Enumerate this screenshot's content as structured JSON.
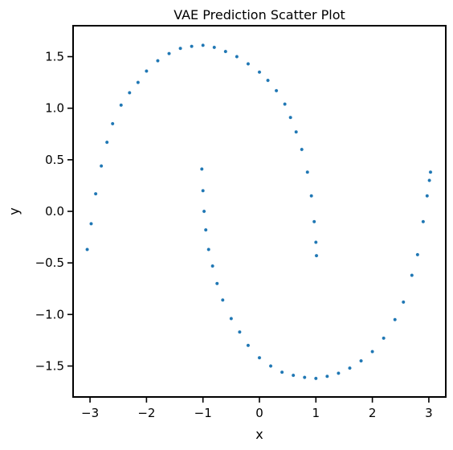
{
  "chart_data": {
    "type": "scatter",
    "title": "VAE Prediction Scatter Plot",
    "xlabel": "x",
    "ylabel": "y",
    "xlim": [
      -3.3,
      3.3
    ],
    "ylim": [
      -1.8,
      1.8
    ],
    "xticks": [
      -3,
      -2,
      -1,
      0,
      1,
      2,
      3
    ],
    "xtick_labels": [
      "−3",
      "−2",
      "−1",
      "0",
      "1",
      "2",
      "3"
    ],
    "yticks": [
      -1.5,
      -1.0,
      -0.5,
      0.0,
      0.5,
      1.0,
      1.5
    ],
    "ytick_labels": [
      "−1.5",
      "−1.0",
      "−0.5",
      "0.0",
      "0.5",
      "1.0",
      "1.5"
    ],
    "grid": false,
    "marker_color": "#1f77b4",
    "series": [
      {
        "points": [
          [
            -3.05,
            -0.37
          ],
          [
            -2.98,
            -0.12
          ],
          [
            -2.9,
            0.17
          ],
          [
            -2.8,
            0.44
          ],
          [
            -2.7,
            0.67
          ],
          [
            -2.6,
            0.85
          ],
          [
            -2.45,
            1.03
          ],
          [
            -2.3,
            1.15
          ],
          [
            -2.15,
            1.25
          ],
          [
            -2.0,
            1.36
          ],
          [
            -1.8,
            1.46
          ],
          [
            -1.6,
            1.53
          ],
          [
            -1.4,
            1.58
          ],
          [
            -1.2,
            1.6
          ],
          [
            -1.0,
            1.61
          ],
          [
            -0.8,
            1.59
          ],
          [
            -0.6,
            1.55
          ],
          [
            -0.4,
            1.5
          ],
          [
            -0.2,
            1.43
          ],
          [
            0.0,
            1.35
          ],
          [
            0.15,
            1.27
          ],
          [
            0.3,
            1.17
          ],
          [
            0.45,
            1.04
          ],
          [
            0.55,
            0.91
          ],
          [
            0.65,
            0.77
          ],
          [
            0.75,
            0.6
          ],
          [
            0.85,
            0.38
          ],
          [
            0.92,
            0.15
          ],
          [
            0.97,
            -0.1
          ],
          [
            1.0,
            -0.3
          ],
          [
            1.01,
            -0.43
          ]
        ]
      },
      {
        "points": [
          [
            -1.02,
            0.41
          ],
          [
            -1.0,
            0.2
          ],
          [
            -0.98,
            0.0
          ],
          [
            -0.95,
            -0.18
          ],
          [
            -0.9,
            -0.37
          ],
          [
            -0.83,
            -0.53
          ],
          [
            -0.75,
            -0.7
          ],
          [
            -0.65,
            -0.86
          ],
          [
            -0.5,
            -1.04
          ],
          [
            -0.35,
            -1.17
          ],
          [
            -0.2,
            -1.3
          ],
          [
            0.0,
            -1.42
          ],
          [
            0.2,
            -1.5
          ],
          [
            0.4,
            -1.56
          ],
          [
            0.6,
            -1.59
          ],
          [
            0.8,
            -1.61
          ],
          [
            1.0,
            -1.62
          ],
          [
            1.2,
            -1.6
          ],
          [
            1.4,
            -1.57
          ],
          [
            1.6,
            -1.52
          ],
          [
            1.8,
            -1.45
          ],
          [
            2.0,
            -1.36
          ],
          [
            2.2,
            -1.23
          ],
          [
            2.4,
            -1.05
          ],
          [
            2.55,
            -0.88
          ],
          [
            2.7,
            -0.62
          ],
          [
            2.8,
            -0.42
          ],
          [
            2.9,
            -0.1
          ],
          [
            2.97,
            0.15
          ],
          [
            3.01,
            0.3
          ],
          [
            3.03,
            0.38
          ]
        ]
      }
    ]
  }
}
